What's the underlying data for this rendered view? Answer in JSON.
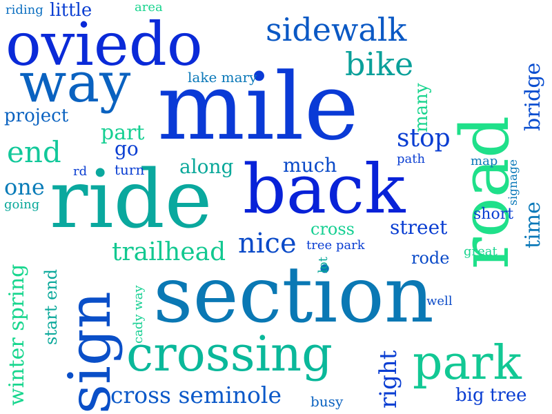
{
  "words": [
    {
      "text": "mile",
      "color": "#0a3ad6"
    },
    {
      "text": "section",
      "color": "#0a78b4"
    },
    {
      "text": "road",
      "color": "#1fe08a"
    },
    {
      "text": "ride",
      "color": "#0aa89e"
    },
    {
      "text": "back",
      "color": "#0822d8"
    },
    {
      "text": "oviedo",
      "color": "#0a2ad8"
    },
    {
      "text": "sign",
      "color": "#0a4fc8"
    },
    {
      "text": "crossing",
      "color": "#0ab89a"
    },
    {
      "text": "way",
      "color": "#0a62c0"
    },
    {
      "text": "park",
      "color": "#12c894"
    },
    {
      "text": "sidewalk",
      "color": "#0a58c4"
    },
    {
      "text": "bike",
      "color": "#0aa09a"
    },
    {
      "text": "cross seminole",
      "color": "#0a58c8"
    },
    {
      "text": "winter spring",
      "color": "#18d68e"
    },
    {
      "text": "nice",
      "color": "#0a4ac8"
    },
    {
      "text": "trailhead",
      "color": "#12c890"
    },
    {
      "text": "end",
      "color": "#12c89a"
    },
    {
      "text": "stop",
      "color": "#0a3ed2"
    },
    {
      "text": "street",
      "color": "#0a3ed2"
    },
    {
      "text": "bridge",
      "color": "#0a4ed0"
    },
    {
      "text": "time",
      "color": "#0a78b8"
    },
    {
      "text": "right",
      "color": "#0a3ed2"
    },
    {
      "text": "big tree",
      "color": "#0a3ed2"
    },
    {
      "text": "much",
      "color": "#0a4ac8"
    },
    {
      "text": "along",
      "color": "#0aa89a"
    },
    {
      "text": "part",
      "color": "#16cf92"
    },
    {
      "text": "go",
      "color": "#0a3ed2"
    },
    {
      "text": "one",
      "color": "#0a7cb8"
    },
    {
      "text": "project",
      "color": "#0a62c0"
    },
    {
      "text": "little",
      "color": "#0a3ed2"
    },
    {
      "text": "riding",
      "color": "#0a6ec0"
    },
    {
      "text": "area",
      "color": "#18d48e"
    },
    {
      "text": "lake mary",
      "color": "#0a78b8"
    },
    {
      "text": "many",
      "color": "#18d48e"
    },
    {
      "text": "cross",
      "color": "#16cf92"
    },
    {
      "text": "tree park",
      "color": "#0a3ed2"
    },
    {
      "text": "rode",
      "color": "#0a4ac8"
    },
    {
      "text": "great",
      "color": "#18d48e"
    },
    {
      "text": "well",
      "color": "#0a4ac8"
    },
    {
      "text": "lot",
      "color": "#0aa89a"
    },
    {
      "text": "busy",
      "color": "#0a62c0"
    },
    {
      "text": "start end",
      "color": "#0aa89a"
    },
    {
      "text": "cady way",
      "color": "#16cf92"
    },
    {
      "text": "going",
      "color": "#0aa89a"
    },
    {
      "text": "rd",
      "color": "#0a3ed2"
    },
    {
      "text": "turn",
      "color": "#0a3ed2"
    },
    {
      "text": "path",
      "color": "#0a3ed2"
    },
    {
      "text": "map",
      "color": "#0a78b8"
    },
    {
      "text": "signage",
      "color": "#0a78b8"
    },
    {
      "text": "short",
      "color": "#0a3ed2"
    }
  ]
}
